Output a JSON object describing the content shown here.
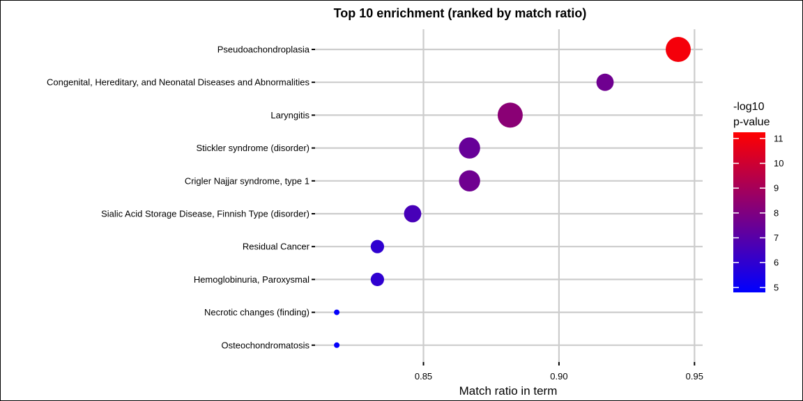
{
  "chart_data": {
    "type": "scatter",
    "title": "Top 10 enrichment (ranked by match ratio)",
    "xlabel": "Match ratio in term",
    "ylabel": "",
    "xlim": [
      0.81,
      0.953
    ],
    "x_ticks": [
      "0.85",
      "0.90",
      "0.95"
    ],
    "x_tick_values": [
      0.85,
      0.9,
      0.95
    ],
    "grid": true,
    "legend": {
      "title_line1": "-log10",
      "title_line2": "p-value",
      "placement": "right",
      "min": 4.8,
      "max": 11.25,
      "ticks": [
        "5",
        "6",
        "7",
        "8",
        "9",
        "10",
        "11"
      ],
      "tick_values": [
        5,
        6,
        7,
        8,
        9,
        10,
        11
      ],
      "color_low": "#0000ff",
      "color_high": "#ff0000"
    },
    "categories": [
      "Pseudoachondroplasia",
      "Congenital, Hereditary, and Neonatal Diseases and Abnormalities",
      "Laryngitis",
      "Stickler syndrome (disorder)",
      "Crigler Najjar syndrome, type 1",
      "Sialic Acid Storage Disease, Finnish Type (disorder)",
      "Residual Cancer",
      "Hemoglobinuria, Paroxysmal",
      "Necrotic changes (finding)",
      "Osteochondromatosis"
    ],
    "x": [
      0.944,
      0.917,
      0.882,
      0.867,
      0.867,
      0.846,
      0.833,
      0.833,
      0.818,
      0.818
    ],
    "neg_log10_p": [
      11.0,
      7.6,
      8.3,
      7.4,
      7.6,
      6.6,
      6.0,
      6.0,
      4.9,
      4.9
    ],
    "size_levels": [
      6,
      4,
      6,
      5,
      5,
      4,
      3,
      3,
      1,
      1
    ],
    "grid_color": "#cccccc"
  }
}
